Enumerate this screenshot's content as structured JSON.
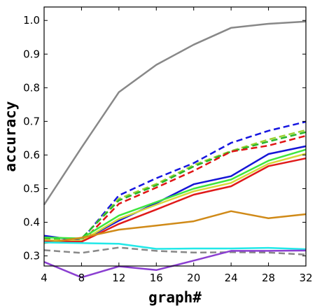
{
  "chart_data": {
    "type": "line",
    "xlabel": "graph#",
    "ylabel": "accuracy",
    "x": [
      4,
      8,
      12,
      16,
      20,
      24,
      28,
      32
    ],
    "xticks": [
      "4",
      "8",
      "12",
      "16",
      "20",
      "24",
      "28",
      "32"
    ],
    "yticks": [
      "0.3",
      "0.4",
      "0.5",
      "0.6",
      "0.7",
      "0.8",
      "0.9",
      "1.0"
    ],
    "xlim": [
      4,
      32
    ],
    "ylim": [
      0.27,
      1.04
    ],
    "grid": false,
    "series": [
      {
        "color": "#888888",
        "dash": false,
        "values": [
          0.452,
          0.622,
          0.787,
          0.868,
          0.928,
          0.978,
          0.99,
          0.997
        ]
      },
      {
        "color": "#1515e0",
        "dash": true,
        "values": [
          0.357,
          0.347,
          0.48,
          0.531,
          0.576,
          0.636,
          0.672,
          0.699
        ]
      },
      {
        "color": "#9bd232",
        "dash": true,
        "values": [
          0.35,
          0.35,
          0.47,
          0.514,
          0.57,
          0.612,
          0.646,
          0.674
        ]
      },
      {
        "color": "#2ab52a",
        "dash": true,
        "values": [
          0.35,
          0.352,
          0.465,
          0.51,
          0.566,
          0.61,
          0.64,
          0.668
        ]
      },
      {
        "color": "#e01515",
        "dash": true,
        "values": [
          0.348,
          0.34,
          0.455,
          0.503,
          0.553,
          0.61,
          0.628,
          0.657
        ]
      },
      {
        "color": "#1515d6",
        "dash": false,
        "values": [
          0.36,
          0.345,
          0.405,
          0.457,
          0.513,
          0.537,
          0.603,
          0.626
        ]
      },
      {
        "color": "#3ee63e",
        "dash": false,
        "values": [
          0.355,
          0.352,
          0.42,
          0.46,
          0.5,
          0.527,
          0.583,
          0.616
        ]
      },
      {
        "color": "#d8d83a",
        "dash": false,
        "values": [
          0.347,
          0.345,
          0.41,
          0.452,
          0.492,
          0.517,
          0.574,
          0.604
        ]
      },
      {
        "color": "#e01a1a",
        "dash": false,
        "values": [
          0.343,
          0.342,
          0.395,
          0.438,
          0.482,
          0.507,
          0.567,
          0.59
        ]
      },
      {
        "color": "#d08a18",
        "dash": false,
        "values": [
          0.338,
          0.354,
          0.378,
          0.39,
          0.403,
          0.433,
          0.412,
          0.424
        ]
      },
      {
        "color": "#22e8e8",
        "dash": false,
        "values": [
          0.34,
          0.338,
          0.336,
          0.321,
          0.322,
          0.322,
          0.324,
          0.32
        ]
      },
      {
        "color": "#888888",
        "dash": true,
        "values": [
          0.317,
          0.309,
          0.325,
          0.315,
          0.31,
          0.311,
          0.31,
          0.304
        ]
      },
      {
        "color": "#8b3fd1",
        "dash": false,
        "values": [
          0.282,
          0.236,
          0.269,
          0.258,
          0.286,
          0.315,
          0.315,
          0.316
        ]
      }
    ]
  }
}
